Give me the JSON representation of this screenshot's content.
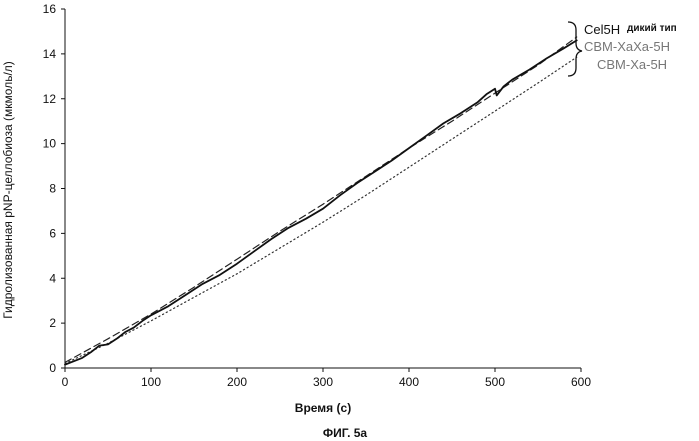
{
  "chart_data": {
    "type": "line",
    "xlabel": "Время (с)",
    "ylabel": "Гидролизованная pNP-целлобиоза (мкмоль/л)",
    "caption": "ФИГ. 5а",
    "xlim": [
      0,
      600
    ],
    "ylim": [
      0,
      16
    ],
    "x_ticks": [
      "0",
      "100",
      "200",
      "300",
      "400",
      "500",
      "600"
    ],
    "y_ticks": [
      "0",
      "2",
      "4",
      "6",
      "8",
      "10",
      "12",
      "14",
      "16"
    ],
    "grid": false,
    "legend_placement": "top-right",
    "legend": {
      "first_main": "Cel5H",
      "first_sub": "дикий тип",
      "second": "CBM-XaXa-5H",
      "third": "CBM-Xa-5H"
    },
    "series": [
      {
        "name": "Cel5H дикий тип",
        "style": "solid",
        "x": [
          0,
          10,
          20,
          30,
          40,
          50,
          60,
          70,
          80,
          90,
          100,
          120,
          140,
          160,
          180,
          200,
          220,
          240,
          260,
          280,
          300,
          320,
          340,
          360,
          380,
          400,
          420,
          440,
          460,
          480,
          490,
          500,
          502,
          510,
          520,
          540,
          560,
          580,
          595
        ],
        "y": [
          0.15,
          0.3,
          0.45,
          0.7,
          1.0,
          1.05,
          1.3,
          1.6,
          1.8,
          2.1,
          2.35,
          2.75,
          3.25,
          3.75,
          4.15,
          4.65,
          5.2,
          5.75,
          6.25,
          6.65,
          7.1,
          7.7,
          8.25,
          8.75,
          9.25,
          9.8,
          10.35,
          10.9,
          11.35,
          11.85,
          12.2,
          12.45,
          12.15,
          12.55,
          12.85,
          13.3,
          13.8,
          14.25,
          14.6
        ]
      },
      {
        "name": "CBM-XaXa-5H",
        "style": "dashed",
        "x": [
          0,
          50,
          100,
          150,
          200,
          250,
          300,
          350,
          400,
          450,
          500,
          550,
          595
        ],
        "y": [
          0.25,
          1.3,
          2.4,
          3.6,
          4.85,
          6.1,
          7.3,
          8.55,
          9.8,
          11.0,
          12.25,
          13.5,
          14.75
        ]
      },
      {
        "name": "CBM-Xa-5H",
        "style": "dotted",
        "x": [
          0,
          50,
          100,
          150,
          200,
          250,
          300,
          350,
          400,
          450,
          500,
          550,
          595
        ],
        "y": [
          0.2,
          1.1,
          2.1,
          3.15,
          4.2,
          5.35,
          6.5,
          7.7,
          8.95,
          10.2,
          11.45,
          12.7,
          13.85
        ]
      }
    ]
  },
  "colors": {
    "series_solid": "#111111",
    "series_dashed": "#222222",
    "series_dotted": "#333333",
    "axis": "#111111",
    "legend_faded": "#777777"
  }
}
